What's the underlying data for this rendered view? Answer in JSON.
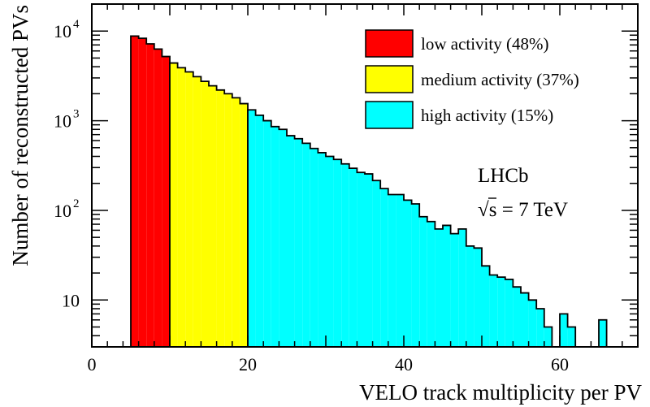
{
  "chart_data": {
    "type": "bar",
    "log_y": true,
    "bin_width": 1,
    "xlim": [
      0,
      70
    ],
    "ylim": [
      3,
      20000
    ],
    "xlabel": "VELO track multiplicity per PV",
    "ylabel": "Number of reconstructed PVs",
    "grid": false,
    "legend_position": "top-right",
    "x_ticks": [
      {
        "value": 0,
        "label": "0"
      },
      {
        "value": 20,
        "label": "20"
      },
      {
        "value": 40,
        "label": "40"
      },
      {
        "value": 60,
        "label": "60"
      }
    ],
    "y_ticks": [
      {
        "value": 10,
        "label": "10",
        "exp": ""
      },
      {
        "value": 100,
        "label": "10",
        "exp": "2"
      },
      {
        "value": 1000,
        "label": "10",
        "exp": "3"
      },
      {
        "value": 10000,
        "label": "10",
        "exp": "4"
      }
    ],
    "series": [
      {
        "name": "low activity (48%)",
        "color": "#ff0000",
        "bins": [
          {
            "x": 5,
            "y": 8800
          },
          {
            "x": 6,
            "y": 8300
          },
          {
            "x": 7,
            "y": 7200
          },
          {
            "x": 8,
            "y": 6300
          },
          {
            "x": 9,
            "y": 5200
          }
        ]
      },
      {
        "name": "medium activity (37%)",
        "color": "#ffff00",
        "bins": [
          {
            "x": 10,
            "y": 4400
          },
          {
            "x": 11,
            "y": 3900
          },
          {
            "x": 12,
            "y": 3500
          },
          {
            "x": 13,
            "y": 3100
          },
          {
            "x": 14,
            "y": 2750
          },
          {
            "x": 15,
            "y": 2450
          },
          {
            "x": 16,
            "y": 2200
          },
          {
            "x": 17,
            "y": 2000
          },
          {
            "x": 18,
            "y": 1800
          },
          {
            "x": 19,
            "y": 1550
          }
        ]
      },
      {
        "name": "high activity (15%)",
        "color": "#00ffff",
        "bins": [
          {
            "x": 20,
            "y": 1320
          },
          {
            "x": 21,
            "y": 1150
          },
          {
            "x": 22,
            "y": 1000
          },
          {
            "x": 23,
            "y": 860
          },
          {
            "x": 24,
            "y": 800
          },
          {
            "x": 25,
            "y": 680
          },
          {
            "x": 26,
            "y": 630
          },
          {
            "x": 27,
            "y": 560
          },
          {
            "x": 28,
            "y": 490
          },
          {
            "x": 29,
            "y": 440
          },
          {
            "x": 30,
            "y": 400
          },
          {
            "x": 31,
            "y": 370
          },
          {
            "x": 32,
            "y": 330
          },
          {
            "x": 33,
            "y": 295
          },
          {
            "x": 34,
            "y": 265
          },
          {
            "x": 35,
            "y": 255
          },
          {
            "x": 36,
            "y": 215
          },
          {
            "x": 37,
            "y": 175
          },
          {
            "x": 38,
            "y": 150
          },
          {
            "x": 39,
            "y": 150
          },
          {
            "x": 40,
            "y": 130
          },
          {
            "x": 41,
            "y": 118
          },
          {
            "x": 42,
            "y": 85
          },
          {
            "x": 43,
            "y": 75
          },
          {
            "x": 44,
            "y": 62
          },
          {
            "x": 45,
            "y": 68
          },
          {
            "x": 46,
            "y": 55
          },
          {
            "x": 47,
            "y": 62
          },
          {
            "x": 48,
            "y": 40
          },
          {
            "x": 49,
            "y": 38
          },
          {
            "x": 50,
            "y": 24
          },
          {
            "x": 51,
            "y": 19
          },
          {
            "x": 52,
            "y": 18
          },
          {
            "x": 53,
            "y": 17
          },
          {
            "x": 54,
            "y": 14
          },
          {
            "x": 55,
            "y": 12
          },
          {
            "x": 56,
            "y": 10
          },
          {
            "x": 57,
            "y": 8
          },
          {
            "x": 58,
            "y": 5
          },
          {
            "x": 60,
            "y": 7
          },
          {
            "x": 61,
            "y": 5
          },
          {
            "x": 65,
            "y": 6
          }
        ]
      }
    ],
    "annotations": {
      "experiment": "LHCb",
      "energy_sqrt": "√",
      "energy_rest": "s = 7 TeV"
    }
  }
}
